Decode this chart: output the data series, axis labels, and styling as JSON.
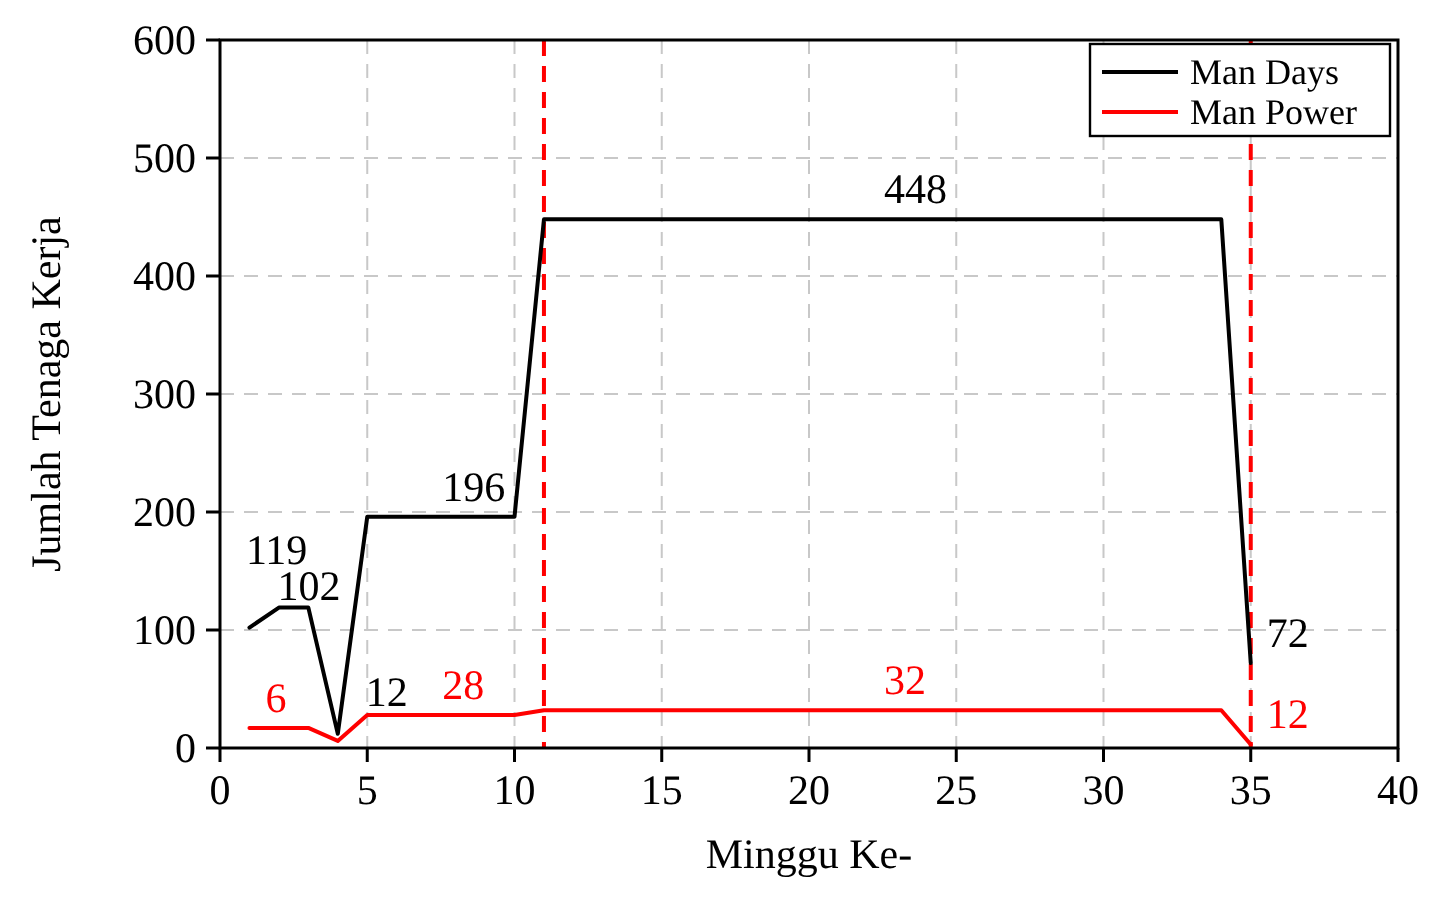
{
  "chart_data": {
    "type": "line",
    "xlabel": "Minggu Ke-",
    "ylabel": "Jumlah Tenaga Kerja",
    "xlim": [
      0,
      40
    ],
    "xticks": [
      0,
      5,
      10,
      15,
      20,
      25,
      30,
      35,
      40
    ],
    "ylim": [
      0,
      600
    ],
    "yticks": [
      0,
      100,
      200,
      300,
      400,
      500,
      600
    ],
    "grid": true,
    "legend": "top right",
    "marker": "none",
    "line_style": "solid",
    "series": [
      {
        "name": "Man Days",
        "color": "#000000",
        "x": [
          1,
          2,
          3,
          4,
          5,
          10,
          11,
          34,
          35
        ],
        "values": [
          102,
          119,
          119,
          12,
          196,
          196,
          448,
          448,
          72
        ]
      },
      {
        "name": "Man Power",
        "color": "#ff0000",
        "x": [
          1,
          3,
          4,
          5,
          10,
          11,
          34,
          35
        ],
        "values": [
          17,
          17,
          6,
          28,
          28,
          32,
          32,
          3
        ]
      }
    ],
    "ref_lines": [
      {
        "axis": "x",
        "value": 11,
        "color": "#ff0000",
        "line_style": "dashed"
      },
      {
        "axis": "x",
        "value": 35,
        "color": "#ff0000",
        "line_style": "dashed"
      }
    ],
    "annotations": [
      {
        "text": "102",
        "x": 1,
        "y": 102
      },
      {
        "text": "119",
        "x": 2,
        "y": 119
      },
      {
        "text": "12",
        "x": 4,
        "y": 12
      },
      {
        "text": "196",
        "x": 7,
        "y": 196
      },
      {
        "text": "448",
        "x": 22,
        "y": 448
      },
      {
        "text": "72",
        "x": 35,
        "y": 72
      },
      {
        "text": "6",
        "x": 1,
        "y": 17
      },
      {
        "text": "28",
        "x": 7,
        "y": 28
      },
      {
        "text": "32",
        "x": 22,
        "y": 32
      },
      {
        "text": "12",
        "x": 35,
        "y": 3
      }
    ]
  }
}
